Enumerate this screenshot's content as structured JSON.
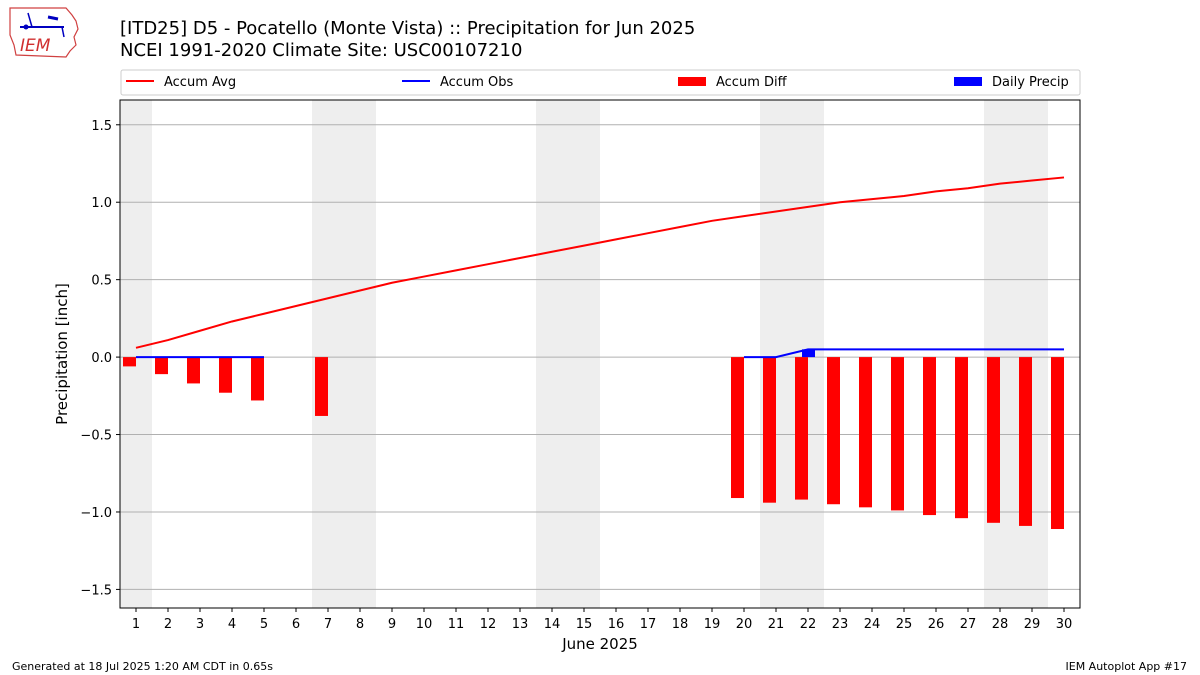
{
  "header": {
    "title_line1": "[ITD25] D5 - Pocatello (Monte Vista)  :: Precipitation for Jun 2025",
    "title_line2": "NCEI 1991-2020 Climate Site: USC00107210",
    "logo_text": "IEM"
  },
  "footer": {
    "generated": "Generated at 18 Jul 2025 1:20 AM CDT in 0.65s",
    "app": "IEM Autoplot App #17"
  },
  "colors": {
    "accum_avg": "#ff0000",
    "accum_obs": "#0000ff",
    "accum_diff": "#ff0000",
    "daily_precip": "#0000ff",
    "weekend_shade": "#eeeeee",
    "grid": "#b0b0b0"
  },
  "chart_data": {
    "type": "bar",
    "title": "[ITD25] D5 - Pocatello (Monte Vista)  :: Precipitation for Jun 2025",
    "subtitle": "NCEI 1991-2020 Climate Site: USC00107210",
    "xlabel": "June 2025",
    "ylabel": "Precipitation [inch]",
    "ylim": [
      -1.62,
      1.66
    ],
    "xlim": [
      0.5,
      31.0
    ],
    "yticks": [
      -1.5,
      -1.0,
      -0.5,
      0.0,
      0.5,
      1.0,
      1.5
    ],
    "ytick_labels": [
      "−1.5",
      "−1.0",
      "−0.5",
      "0.0",
      "0.5",
      "1.0",
      "1.5"
    ],
    "days": [
      1,
      2,
      3,
      4,
      5,
      6,
      7,
      8,
      9,
      10,
      11,
      12,
      13,
      14,
      15,
      16,
      17,
      18,
      19,
      20,
      21,
      22,
      23,
      24,
      25,
      26,
      27,
      28,
      29,
      30
    ],
    "grid": "horizontal",
    "legend": {
      "position": "top",
      "entries": [
        {
          "label": "Accum Avg",
          "kind": "line",
          "color": "#ff0000"
        },
        {
          "label": "Accum Obs",
          "kind": "line",
          "color": "#0000ff"
        },
        {
          "label": "Accum Diff",
          "kind": "bar",
          "color": "#ff0000"
        },
        {
          "label": "Daily Precip",
          "kind": "bar",
          "color": "#0000ff"
        }
      ]
    },
    "weekend_spans": [
      [
        0.5,
        1.5
      ],
      [
        6.5,
        8.5
      ],
      [
        13.5,
        15.5
      ],
      [
        20.5,
        22.5
      ],
      [
        27.5,
        29.5
      ]
    ],
    "series": [
      {
        "name": "Accum Avg",
        "kind": "line",
        "color": "#ff0000",
        "x": [
          1,
          2,
          3,
          4,
          5,
          6,
          7,
          8,
          9,
          10,
          11,
          12,
          13,
          14,
          15,
          16,
          17,
          18,
          19,
          20,
          21,
          22,
          23,
          24,
          25,
          26,
          27,
          28,
          29,
          30
        ],
        "values": [
          0.06,
          0.11,
          0.17,
          0.23,
          0.28,
          0.33,
          0.38,
          0.43,
          0.48,
          0.52,
          0.56,
          0.6,
          0.64,
          0.68,
          0.72,
          0.76,
          0.8,
          0.84,
          0.88,
          0.91,
          0.94,
          0.97,
          1.0,
          1.02,
          1.04,
          1.07,
          1.09,
          1.12,
          1.14,
          1.16
        ]
      },
      {
        "name": "Accum Obs",
        "kind": "line",
        "color": "#0000ff",
        "segments": [
          {
            "x": [
              1,
              2,
              3,
              4,
              5
            ],
            "values": [
              0,
              0,
              0,
              0,
              0
            ]
          },
          {
            "x": [
              20,
              21,
              22,
              23,
              24,
              25,
              26,
              27,
              28,
              29,
              30
            ],
            "values": [
              0,
              0,
              0.05,
              0.05,
              0.05,
              0.05,
              0.05,
              0.05,
              0.05,
              0.05,
              0.05
            ]
          }
        ]
      },
      {
        "name": "Accum Diff",
        "kind": "bar",
        "color": "#ff0000",
        "x": [
          1,
          2,
          3,
          4,
          5,
          7,
          20,
          21,
          22,
          23,
          24,
          25,
          26,
          27,
          28,
          29,
          30
        ],
        "values": [
          -0.06,
          -0.11,
          -0.17,
          -0.23,
          -0.28,
          -0.38,
          -0.91,
          -0.94,
          -0.92,
          -0.95,
          -0.97,
          -0.99,
          -1.02,
          -1.04,
          -1.07,
          -1.09,
          -1.11
        ]
      },
      {
        "name": "Daily Precip",
        "kind": "bar",
        "color": "#0000ff",
        "x": [
          22
        ],
        "values": [
          0.05
        ]
      }
    ]
  }
}
